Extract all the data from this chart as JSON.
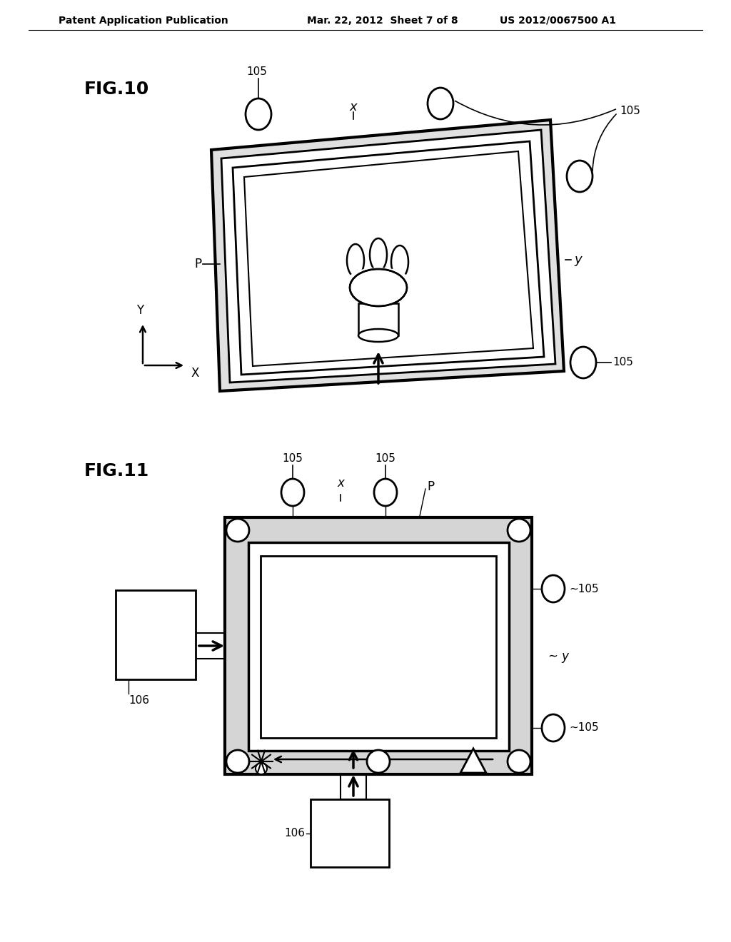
{
  "bg_color": "#ffffff",
  "line_color": "#000000",
  "header_left": "Patent Application Publication",
  "header_mid": "Mar. 22, 2012  Sheet 7 of 8",
  "header_right": "US 2012/0067500 A1",
  "fig10_label": "FIG.10",
  "fig11_label": "FIG.11"
}
